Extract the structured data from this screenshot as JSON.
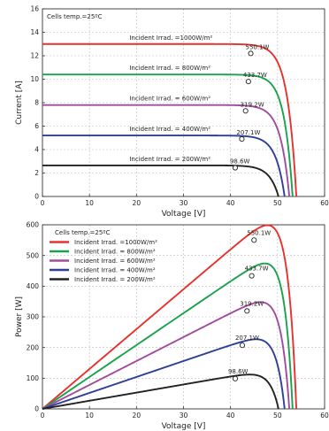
{
  "chart_data": [
    {
      "type": "line",
      "xlabel": "Voltage [V]",
      "ylabel": "Current [A]",
      "xlim": [
        0,
        60
      ],
      "ylim": [
        0,
        16
      ],
      "xticks": [
        0,
        10,
        20,
        30,
        40,
        50,
        60
      ],
      "yticks": [
        0,
        2,
        4,
        6,
        8,
        10,
        12,
        14,
        16
      ],
      "grid": true,
      "annotation_title": "Cells temp.=25ºC",
      "series": [
        {
          "name": "Incident Irrad. =1000W/m²",
          "color": "#e8312c",
          "isc": 13.0,
          "voc": 54.0,
          "knee": 48.0,
          "mpp_label": "550.1W",
          "mpp": [
            44.3,
            12.2
          ]
        },
        {
          "name": "Incident Irrad. = 800W/m²",
          "color": "#1aa24a",
          "isc": 10.4,
          "voc": 53.2,
          "knee": 47.5,
          "mpp_label": "433.7W",
          "mpp": [
            43.8,
            9.8
          ]
        },
        {
          "name": "Incident Irrad. = 600W/m²",
          "color": "#a24b9e",
          "isc": 7.8,
          "voc": 52.5,
          "knee": 46.5,
          "mpp_label": "319.2W",
          "mpp": [
            43.2,
            7.3
          ]
        },
        {
          "name": "Incident Irrad. = 400W/m²",
          "color": "#2f3f96",
          "isc": 5.2,
          "voc": 51.5,
          "knee": 45.5,
          "mpp_label": "207.1W",
          "mpp": [
            42.4,
            4.9
          ]
        },
        {
          "name": "Incident Irrad. = 200W/m²",
          "color": "#222222",
          "isc": 2.65,
          "voc": 50.2,
          "knee": 44.0,
          "mpp_label": "98.6W",
          "mpp": [
            41.0,
            2.45
          ]
        }
      ]
    },
    {
      "type": "line",
      "xlabel": "Voltage [V]",
      "ylabel": "Power [W]",
      "xlim": [
        0,
        60
      ],
      "ylim": [
        0,
        600
      ],
      "xticks": [
        0,
        10,
        20,
        30,
        40,
        50,
        60
      ],
      "yticks": [
        0,
        100,
        200,
        300,
        400,
        500,
        600
      ],
      "grid": true,
      "legend": "top-left",
      "annotation_title": "Cells temp.=25ºC",
      "series": [
        {
          "name": "Incident Irrad. =1000W/m²",
          "color": "#e8312c",
          "mpp_label": "550.1W",
          "mpp": [
            45.0,
            550.1
          ]
        },
        {
          "name": "Incident Irrad. = 800W/m²",
          "color": "#1aa24a",
          "mpp_label": "433.7W",
          "mpp": [
            44.5,
            433.7
          ]
        },
        {
          "name": "Incident Irrad. = 600W/m²",
          "color": "#a24b9e",
          "mpp_label": "319.2W",
          "mpp": [
            43.5,
            319.2
          ]
        },
        {
          "name": "Incident Irrad. = 400W/m²",
          "color": "#2f3f96",
          "mpp_label": "207.1W",
          "mpp": [
            42.5,
            207.1
          ]
        },
        {
          "name": "Incident Irrad. = 200W/m²",
          "color": "#222222",
          "mpp_label": "98.6W",
          "mpp": [
            41.0,
            98.6
          ]
        }
      ]
    }
  ]
}
